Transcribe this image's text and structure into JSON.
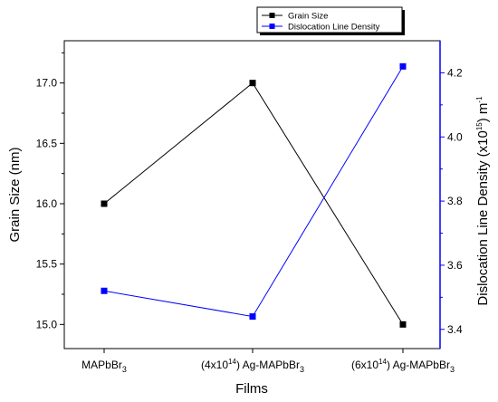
{
  "chart_data": {
    "type": "line",
    "categories": [
      {
        "pre": "",
        "sup": "",
        "mid": "MAPbBr",
        "sub": "3"
      },
      {
        "pre": "(4x10",
        "sup": "14",
        "mid": ") Ag-MAPbBr",
        "sub": "3"
      },
      {
        "pre": "(6x10",
        "sup": "14",
        "mid": ") Ag-MAPbBr",
        "sub": "3"
      }
    ],
    "xlabel": "Films",
    "ylabel": "Grain Size (nm)",
    "y2label": {
      "pre": "Dislocation Line Density (x10",
      "sup": "15",
      "post": ") m",
      "sup2": "-1"
    },
    "ylim": [
      14.8,
      17.35
    ],
    "y2lim": [
      3.34,
      4.3
    ],
    "yticks": [
      "15.0",
      "15.5",
      "16.0",
      "16.5",
      "17.0"
    ],
    "y2ticks": [
      "3.4",
      "3.6",
      "3.8",
      "4.0",
      "4.2"
    ],
    "series": [
      {
        "name": "Grain Size",
        "axis": "left",
        "color": "#000000",
        "values": [
          16.0,
          17.0,
          15.0
        ]
      },
      {
        "name": "Dislocation Line Density",
        "axis": "right",
        "color": "#0000ff",
        "values": [
          3.52,
          3.44,
          4.22
        ]
      }
    ],
    "legend": "top-right",
    "grid": false
  }
}
